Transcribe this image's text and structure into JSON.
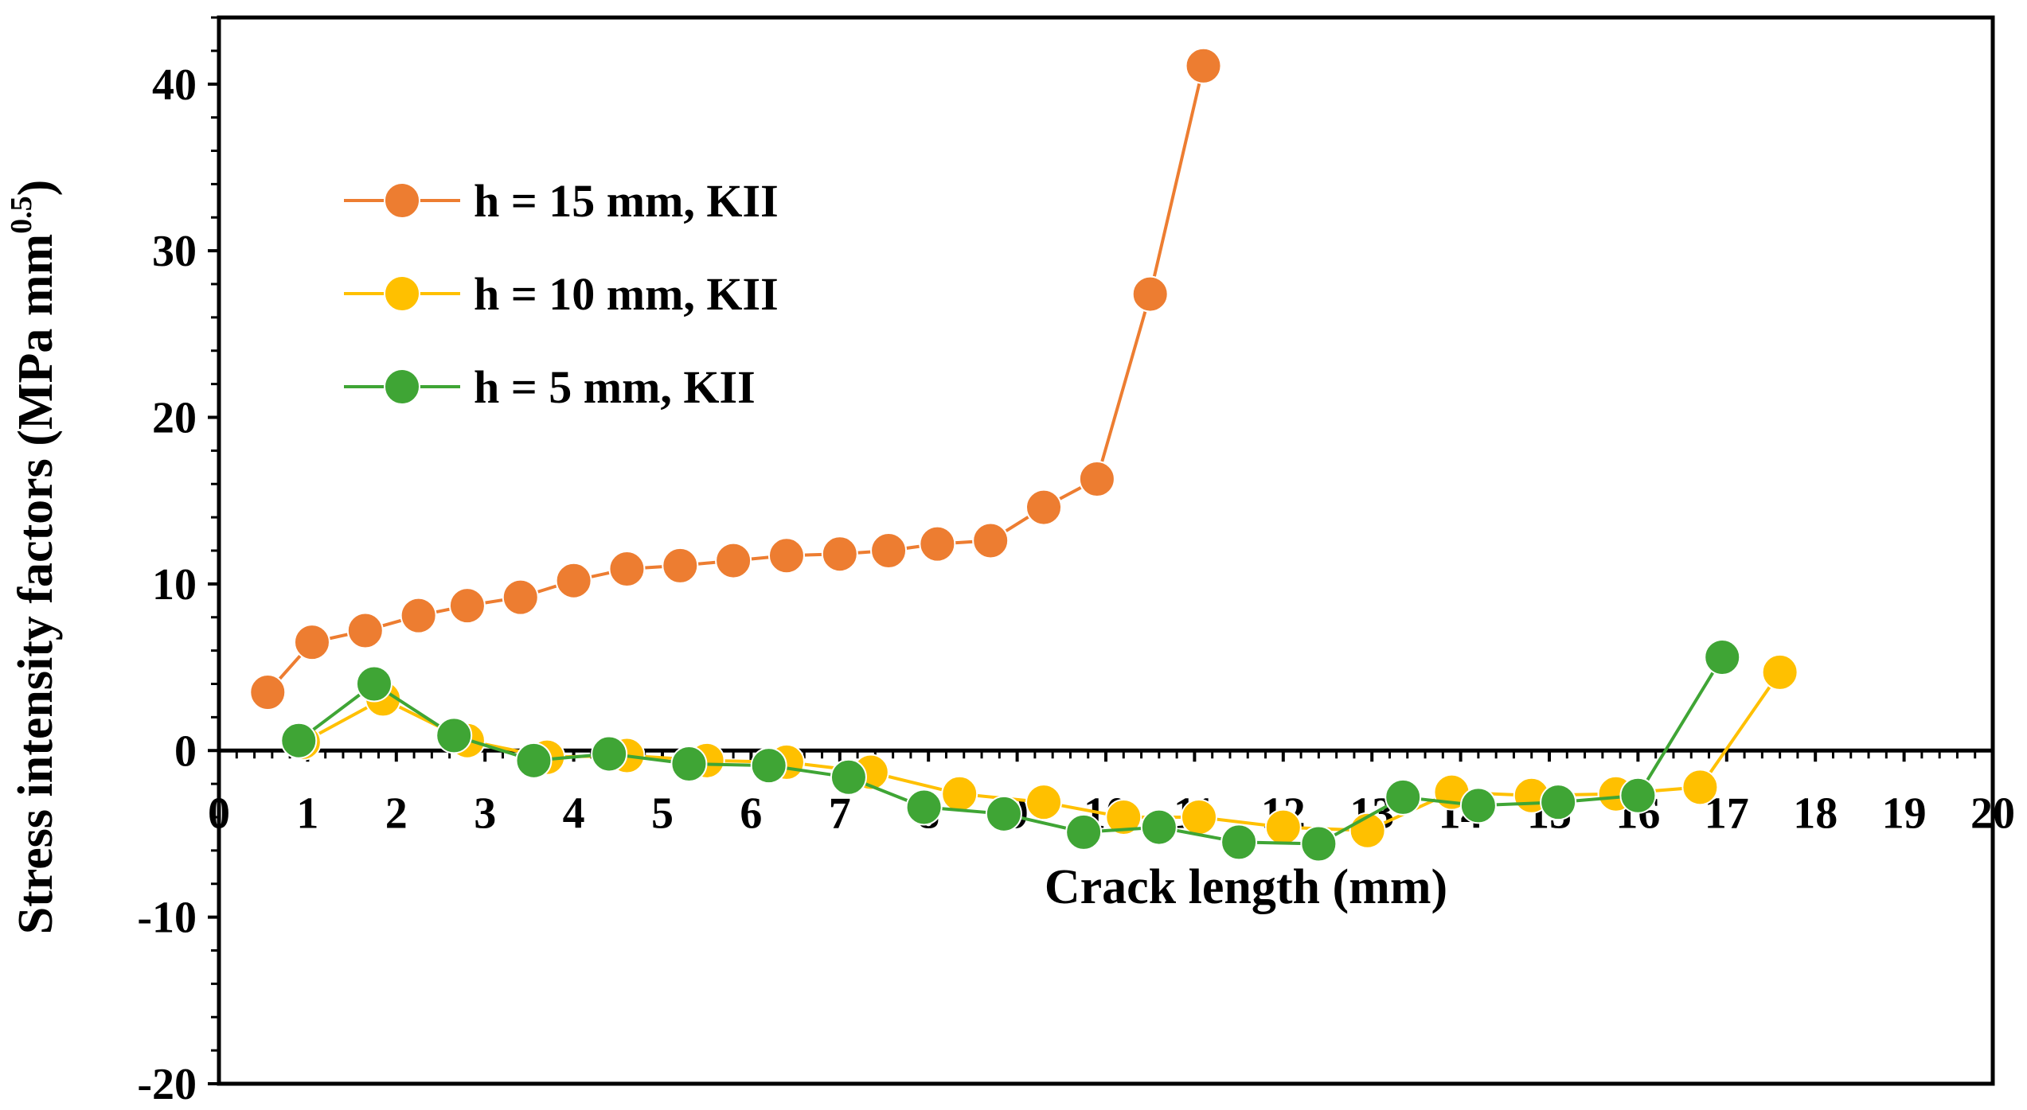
{
  "chart_data": {
    "type": "line",
    "title": "",
    "xlabel": "Crack length (mm)",
    "ylabel": {
      "main": "Stress intensity factors (MPa mm",
      "sup": "0.5",
      "close": ")"
    },
    "xlim": [
      0,
      20
    ],
    "ylim": [
      -20,
      44
    ],
    "xticks": [
      "0",
      "1",
      "2",
      "3",
      "4",
      "5",
      "6",
      "7",
      "8",
      "9",
      "10",
      "11",
      "12",
      "13",
      "14",
      "15",
      "16",
      "17",
      "18",
      "19",
      "20"
    ],
    "yticks": [
      "-20",
      "-10",
      "0",
      "10",
      "20",
      "30",
      "40"
    ],
    "legend_position": "top-left",
    "series": [
      {
        "name": "h = 15 mm, KII",
        "color": "#ED7D31",
        "x": [
          0.55,
          1.05,
          1.65,
          2.25,
          2.8,
          3.4,
          4.0,
          4.6,
          5.2,
          5.8,
          6.4,
          7.0,
          7.55,
          8.1,
          8.7,
          9.3,
          9.9,
          10.5,
          11.1
        ],
        "y": [
          3.5,
          6.5,
          7.2,
          8.1,
          8.7,
          9.2,
          10.2,
          10.9,
          11.1,
          11.4,
          11.7,
          11.8,
          12.0,
          12.4,
          12.6,
          14.6,
          16.3,
          27.4,
          41.1
        ]
      },
      {
        "name": "h = 10 mm, KII",
        "color": "#FFC000",
        "x": [
          0.95,
          1.85,
          2.8,
          3.7,
          4.6,
          5.5,
          6.4,
          7.35,
          8.35,
          9.3,
          10.2,
          11.05,
          12.0,
          12.95,
          13.9,
          14.8,
          15.75,
          16.7,
          17.6
        ],
        "y": [
          0.5,
          3.1,
          0.6,
          -0.4,
          -0.3,
          -0.6,
          -0.7,
          -1.3,
          -2.6,
          -3.1,
          -4.0,
          -4.0,
          -4.6,
          -4.8,
          -2.5,
          -2.7,
          -2.6,
          -2.2,
          4.7
        ]
      },
      {
        "name": "h = 5 mm, KII",
        "color": "#3FA535",
        "x": [
          0.9,
          1.75,
          2.65,
          3.55,
          4.4,
          5.3,
          6.2,
          7.1,
          7.95,
          8.85,
          9.75,
          10.6,
          11.5,
          12.4,
          13.35,
          14.2,
          15.1,
          16.0,
          16.95
        ],
        "y": [
          0.6,
          4.0,
          0.9,
          -0.6,
          -0.2,
          -0.8,
          -0.9,
          -1.6,
          -3.4,
          -3.8,
          -4.9,
          -4.6,
          -5.5,
          -5.6,
          -2.8,
          -3.3,
          -3.1,
          -2.7,
          5.6
        ]
      }
    ]
  }
}
